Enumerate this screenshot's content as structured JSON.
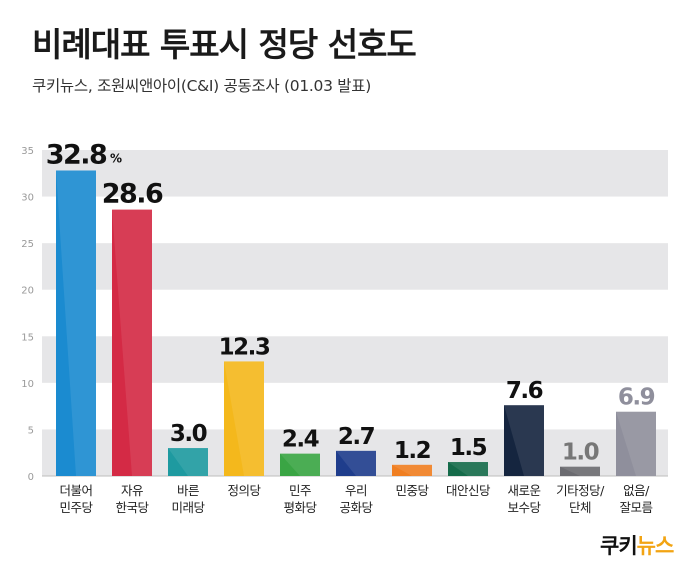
{
  "title": "비례대표 투표시 정당 선호도",
  "subtitle": "쿠키뉴스, 조원씨앤아이(C&I) 공동조사 (01.03 발표)",
  "logo": {
    "part1": "쿠키",
    "part2": "뉴스"
  },
  "chart_data": {
    "type": "bar",
    "categories": [
      [
        "더불어",
        "민주당"
      ],
      [
        "자유",
        "한국당"
      ],
      [
        "바른",
        "미래당"
      ],
      [
        "정의당"
      ],
      [
        "민주",
        "평화당"
      ],
      [
        "우리",
        "공화당"
      ],
      [
        "민중당"
      ],
      [
        "대안신당"
      ],
      [
        "새로운",
        "보수당"
      ],
      [
        "기타정당/",
        "단체"
      ],
      [
        "없음/",
        "잘모름"
      ]
    ],
    "values": [
      32.8,
      28.6,
      3.0,
      12.3,
      2.4,
      2.7,
      1.2,
      1.5,
      7.6,
      1.0,
      6.9
    ],
    "value_labels": [
      "32.8",
      "28.6",
      "3.0",
      "12.3",
      "2.4",
      "2.7",
      "1.2",
      "1.5",
      "7.6",
      "1.0",
      "6.9"
    ],
    "value_unit": "%",
    "colors": [
      "#1b8bd0",
      "#d42a45",
      "#1e9aa0",
      "#f4b81c",
      "#3aa544",
      "#1f3d8c",
      "#f07f22",
      "#156b4a",
      "#15253f",
      "#6b6b70",
      "#8f8f9c"
    ],
    "yticks": [
      0,
      5,
      10,
      15,
      20,
      25,
      30,
      35
    ],
    "ylim": [
      0,
      35
    ],
    "grid": "alternating bands"
  }
}
